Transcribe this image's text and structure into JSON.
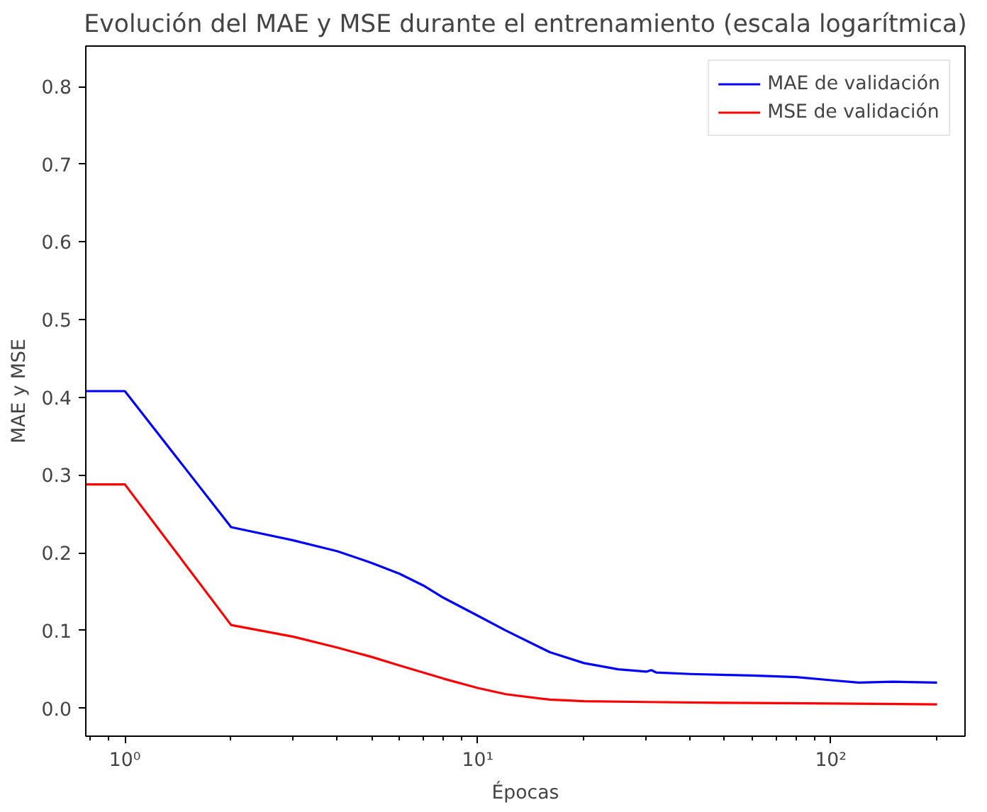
{
  "chart_data": {
    "type": "line",
    "title": "Evolución del MAE y MSE durante el entrenamiento (escala logarítmica)",
    "xlabel": "Épocas",
    "ylabel": "MAE y MSE",
    "log": "x",
    "grid": false,
    "legend": "top right",
    "xlim": [
      0.775,
      240
    ],
    "ylim": [
      -0.036,
      0.852
    ],
    "xticks": [
      {
        "value": 1,
        "label": "10⁰"
      },
      {
        "value": 10,
        "label": "10¹"
      },
      {
        "value": 100,
        "label": "10²"
      }
    ],
    "yticks": [
      {
        "value": 0,
        "label": "0.0"
      },
      0.1,
      0.2,
      0.3,
      0.4,
      0.5,
      0.6,
      0.7,
      0.8
    ],
    "series": [
      {
        "name": "MAE de validación",
        "color": "#0000ff",
        "x": [
          0.775,
          1,
          2,
          3,
          4,
          5,
          6,
          7,
          8,
          10,
          12,
          16,
          20,
          25,
          30,
          31,
          32,
          40,
          60,
          80,
          100,
          120,
          150,
          200
        ],
        "values": [
          0.408,
          0.408,
          0.233,
          0.216,
          0.202,
          0.187,
          0.173,
          0.158,
          0.142,
          0.119,
          0.1,
          0.072,
          0.058,
          0.05,
          0.047,
          0.049,
          0.046,
          0.044,
          0.042,
          0.04,
          0.036,
          0.033,
          0.034,
          0.033
        ]
      },
      {
        "name": "MSE de validación",
        "color": "#ff0000",
        "x": [
          0.775,
          1,
          2,
          3,
          4,
          5,
          6,
          8,
          10,
          12,
          16,
          20,
          30,
          50,
          100,
          200
        ],
        "values": [
          0.288,
          0.288,
          0.107,
          0.092,
          0.078,
          0.066,
          0.055,
          0.038,
          0.026,
          0.018,
          0.011,
          0.009,
          0.008,
          0.007,
          0.006,
          0.005
        ]
      }
    ]
  }
}
